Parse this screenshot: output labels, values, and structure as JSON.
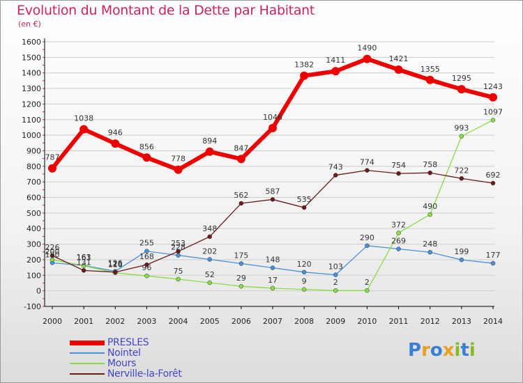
{
  "header": {
    "title": "Evolution du Montant de la Dette par Habitant",
    "subtitle": "(en €)"
  },
  "logo": {
    "text": "Proxiti",
    "letters": [
      "P",
      "r",
      "o",
      "x",
      "i",
      "t",
      "i"
    ]
  },
  "colors": {
    "title": "#cc2266",
    "legend_text": "#4444cc",
    "grid": "#cccccc",
    "axis": "#000000"
  },
  "chart_data": {
    "type": "line",
    "title": "Evolution du Montant de la Dette par Habitant",
    "subtitle": "(en €)",
    "xlabel": "",
    "ylabel": "",
    "x": [
      "2000",
      "2001",
      "2002",
      "2003",
      "2004",
      "2005",
      "2006",
      "2007",
      "2008",
      "2009",
      "2010",
      "2011",
      "2012",
      "2013",
      "2014"
    ],
    "ylim": [
      -100,
      1600
    ],
    "yticks": [
      -100,
      0,
      100,
      200,
      300,
      400,
      500,
      600,
      700,
      800,
      900,
      1000,
      1100,
      1200,
      1300,
      1400,
      1500,
      1600
    ],
    "grid": "horizontal",
    "legend_position": "bottom-left",
    "series": [
      {
        "name": "PRESLES",
        "color": "#ee0000",
        "width": 6,
        "marker": 6,
        "values": [
          787,
          1038,
          946,
          856,
          778,
          894,
          847,
          1046,
          1382,
          1411,
          1490,
          1421,
          1355,
          1295,
          1243
        ],
        "labels": [
          "787",
          "1038",
          "946",
          "856",
          "778",
          "894",
          "847",
          "1046",
          "1382",
          "1411",
          "1490",
          "1421",
          "1355",
          "1295",
          "1243"
        ]
      },
      {
        "name": "Nointel",
        "color": "#4a90d9",
        "width": 1.3,
        "marker": 3,
        "values": [
          180,
          163,
          126,
          255,
          228,
          202,
          175,
          148,
          120,
          103,
          290,
          269,
          248,
          199,
          177
        ],
        "labels": [
          "180",
          "163",
          "126",
          "255",
          "228",
          "202",
          "175",
          "148",
          "120",
          "103",
          "290",
          "269",
          "248",
          "199",
          "177"
        ]
      },
      {
        "name": "Mours",
        "color": "#88dd44",
        "width": 1.3,
        "marker": 3,
        "values": [
          200,
          161,
          116,
          96,
          75,
          52,
          29,
          17,
          9,
          2,
          2,
          372,
          490,
          993,
          1097
        ],
        "labels": [
          "200",
          "161",
          "116",
          "96",
          "75",
          "52",
          "29",
          "17",
          "9",
          "2",
          "2",
          "372",
          "490",
          "993",
          "1097"
        ]
      },
      {
        "name": "Nerville-la-Forêt",
        "color": "#6b1a1a",
        "width": 1.3,
        "marker": 3,
        "values": [
          226,
          131,
          120,
          168,
          253,
          348,
          562,
          587,
          535,
          743,
          774,
          754,
          758,
          722,
          692
        ],
        "labels": [
          "226",
          "131",
          "120",
          "168",
          "253",
          "348",
          "562",
          "587",
          "535",
          "743",
          "774",
          "754",
          "758",
          "722",
          "692"
        ]
      }
    ]
  }
}
